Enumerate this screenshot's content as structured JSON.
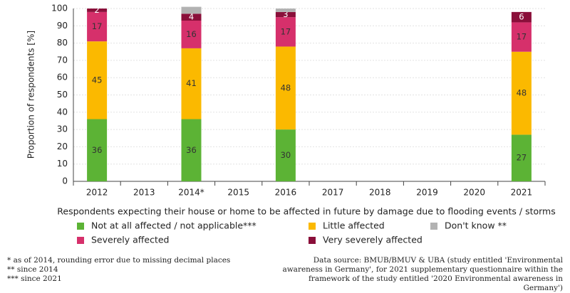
{
  "chart_data": {
    "type": "stacked_bar",
    "categories": [
      "2012",
      "2013",
      "2014*",
      "2015",
      "2016",
      "2017",
      "2018",
      "2019",
      "2020",
      "2021"
    ],
    "series": [
      {
        "name": "Not at all affected / not applicable***",
        "color": "#5cb335",
        "values": [
          36,
          null,
          36,
          null,
          30,
          null,
          null,
          null,
          null,
          27
        ]
      },
      {
        "name": "Little affected",
        "color": "#fbb900",
        "values": [
          45,
          null,
          41,
          null,
          48,
          null,
          null,
          null,
          null,
          48
        ]
      },
      {
        "name": "Severely affected",
        "color": "#d6306b",
        "values": [
          17,
          null,
          16,
          null,
          17,
          null,
          null,
          null,
          null,
          17
        ]
      },
      {
        "name": "Very severely affected",
        "color": "#8a0f3a",
        "values": [
          2,
          null,
          4,
          null,
          3,
          null,
          null,
          null,
          null,
          6
        ]
      },
      {
        "name": "Don't know **",
        "color": "#b2b2b2",
        "values": [
          null,
          null,
          4,
          null,
          2,
          null,
          null,
          null,
          null,
          null
        ]
      }
    ],
    "y_label": "Proportion of respondents [%]",
    "legend_title": "Respondents expecting their house or home to be affected in future by damage due to flooding events / storms",
    "ylim": [
      0,
      100
    ],
    "yticks": [
      0,
      10,
      20,
      30,
      40,
      50,
      60,
      70,
      80,
      90,
      100
    ],
    "grid": true
  },
  "footnotes": [
    "* as of 2014, rounding error due to missing decimal places",
    "** since 2014",
    "*** since 2021"
  ],
  "source": "Data source: BMUB/BMUV & UBA (study entitled 'Environmental awareness in Germany', for 2021 supplementary questionnaire within the framework of the study entitled '2020 Environmental awareness in Germany')"
}
